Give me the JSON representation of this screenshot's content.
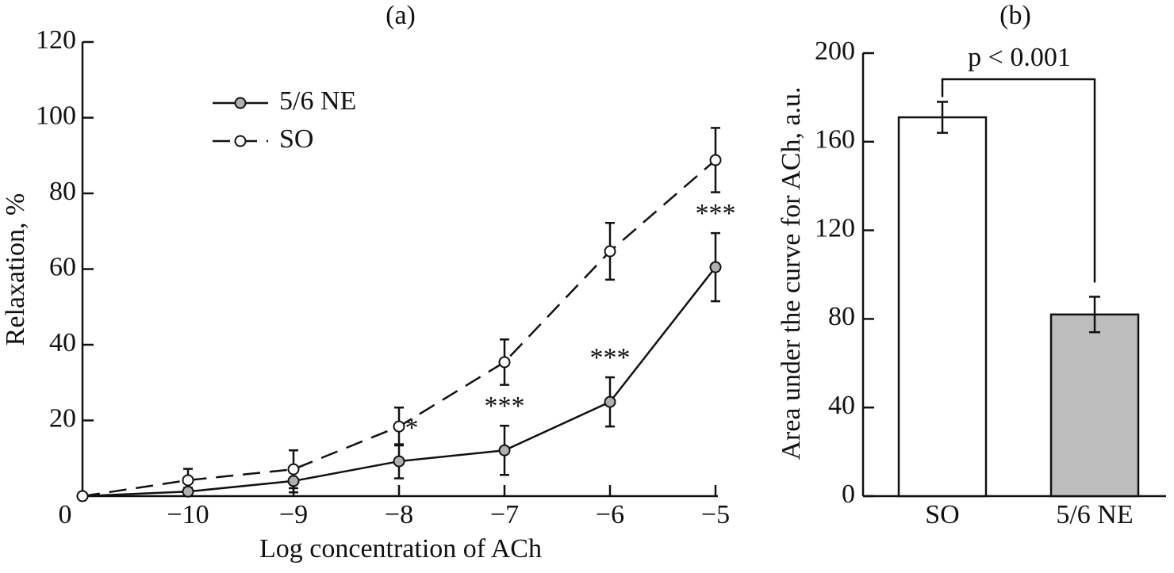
{
  "chart_data": [
    {
      "type": "line",
      "title": "(a)",
      "xlabel": "Log concentration of ACh",
      "ylabel": "Relaxation, %",
      "categories": [
        "0",
        "−10",
        "−9",
        "−8",
        "−7",
        "−6",
        "−5"
      ],
      "series": [
        {
          "name": "5/6 NE",
          "color": "#b0b0b0",
          "dash": false,
          "values": [
            0,
            1.2,
            4,
            9.2,
            12.1,
            24.9,
            60.5
          ],
          "errors": [
            null,
            1,
            3,
            4.5,
            6.5,
            6.5,
            9
          ]
        },
        {
          "name": "SO",
          "color": "#ffffff",
          "dash": true,
          "values": [
            0,
            4.2,
            7.1,
            18.4,
            35.4,
            64.7,
            88.8
          ],
          "errors": [
            null,
            3,
            5,
            5,
            6,
            7.5,
            8.5
          ]
        }
      ],
      "annotations": [
        null,
        null,
        null,
        "*",
        "***",
        "***",
        "***"
      ],
      "ylim": [
        0,
        120
      ],
      "yticks": [
        20,
        40,
        60,
        80,
        100,
        120
      ],
      "legend": "upper left"
    },
    {
      "type": "bar",
      "title": "(b)",
      "ylabel": "Area under the curve for ACh, a.u.",
      "categories": [
        "SO",
        "5/6 NE"
      ],
      "values": [
        171,
        82
      ],
      "errors": [
        7,
        8
      ],
      "colors": [
        "#ffffff",
        "#bdbdbd"
      ],
      "annotation": "p < 0.001",
      "ylim": [
        0,
        200
      ],
      "yticks": [
        0,
        40,
        80,
        120,
        160,
        200
      ]
    }
  ]
}
